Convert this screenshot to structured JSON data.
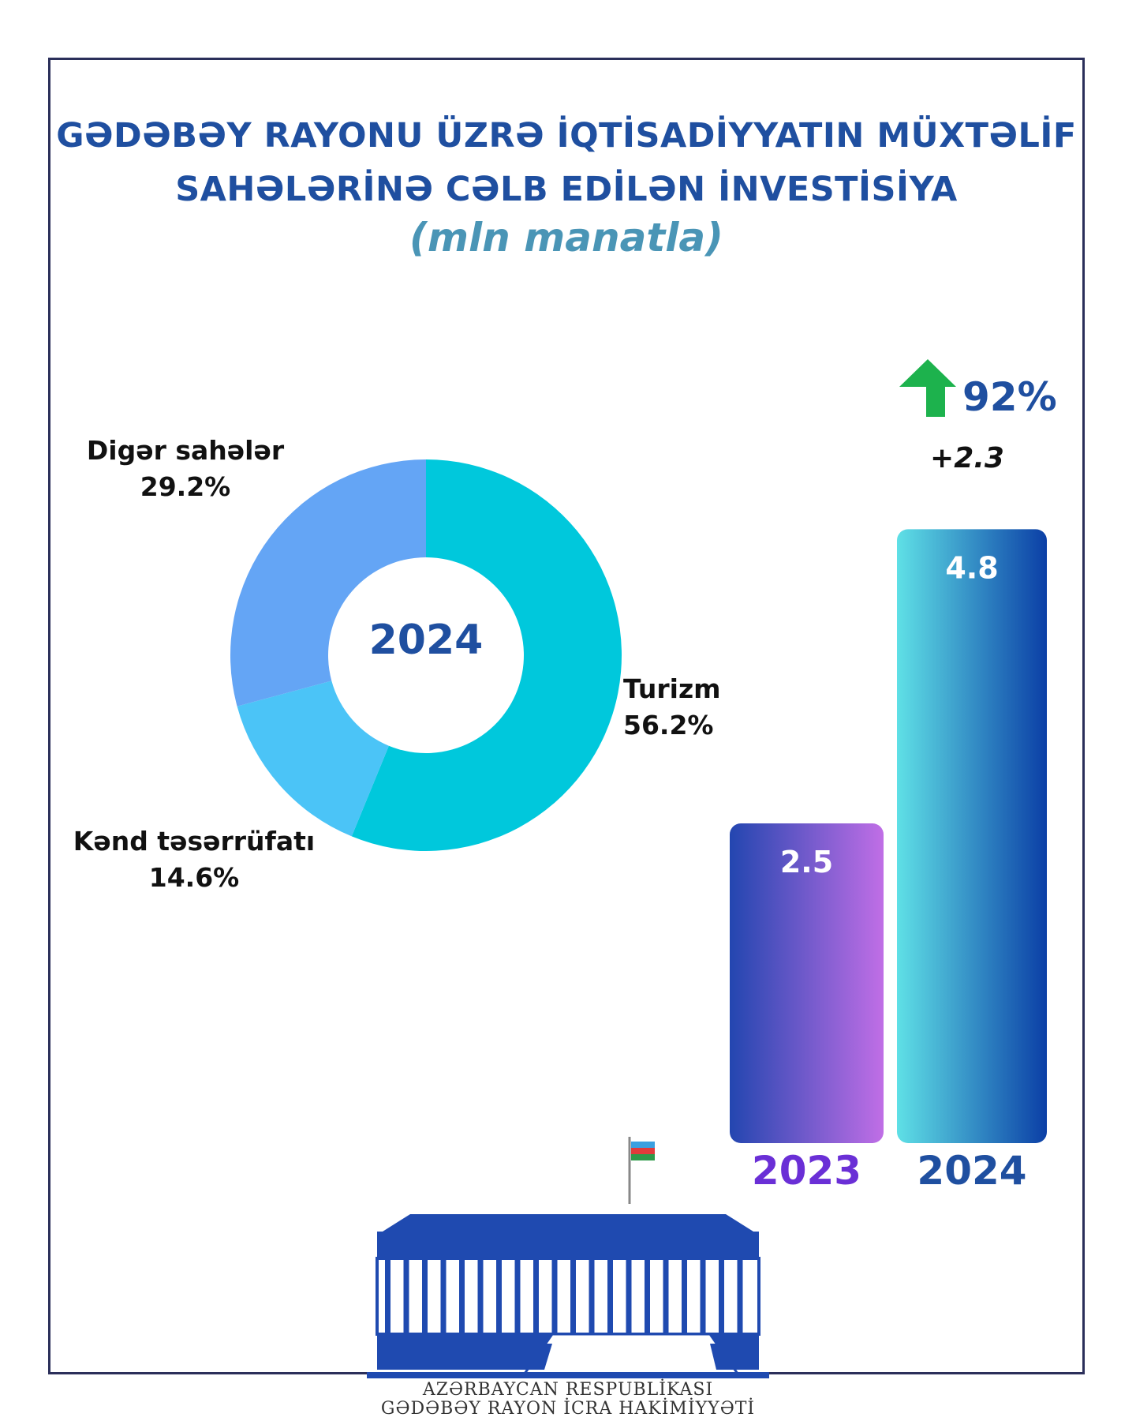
{
  "title_line1": "GƏDƏBƏY RAYONU ÜZRƏ  İQTİSADİYYATIN MÜXTƏLİF",
  "title_line2": "SAHƏLƏRİNƏ  CƏLB EDİLƏN İNVESTİSİYA",
  "subtitle": "(mln manatla)",
  "growth_pct": "92%",
  "growth_abs": "+2.3",
  "footer_line1": "AZƏRBAYCAN RESPUBLİKASI",
  "footer_line2": "GƏDƏBƏY RAYON İCRA HAKİMİYYƏTİ",
  "colors": {
    "tourism": "#00c8dc",
    "agriculture": "#4bc4f7",
    "other": "#64a5f5",
    "title": "#1f4fa0",
    "bar_2023_start": "#2346b0",
    "bar_2023_end": "#c06ee6",
    "bar_2024_start": "#5fe0e6",
    "bar_2024_end": "#0b3fa6",
    "arrow": "#1db24d"
  },
  "chart_data": [
    {
      "type": "pie",
      "center_label": "2024",
      "slices": [
        {
          "label": "Turizm",
          "pct_label": "56.2%",
          "value": 56.2
        },
        {
          "label": "Kənd təsərrüfatı",
          "pct_label": "14.6%",
          "value": 14.6
        },
        {
          "label": "Digər sahələr",
          "pct_label": "29.2%",
          "value": 29.2
        }
      ]
    },
    {
      "type": "bar",
      "categories": [
        "2023",
        "2024"
      ],
      "values": [
        2.5,
        4.8
      ],
      "value_labels": [
        "2.5",
        "4.8"
      ]
    }
  ],
  "slice_labels": {
    "tourism_name": "Turizm",
    "tourism_pct": "56.2%",
    "agri_name": "Kənd təsərrüfatı",
    "agri_pct": "14.6%",
    "other_name": "Digər sahələr",
    "other_pct": "29.2%"
  },
  "bar_labels": {
    "v2023": "2.5",
    "v2024": "4.8",
    "y2023": "2023",
    "y2024": "2024"
  }
}
